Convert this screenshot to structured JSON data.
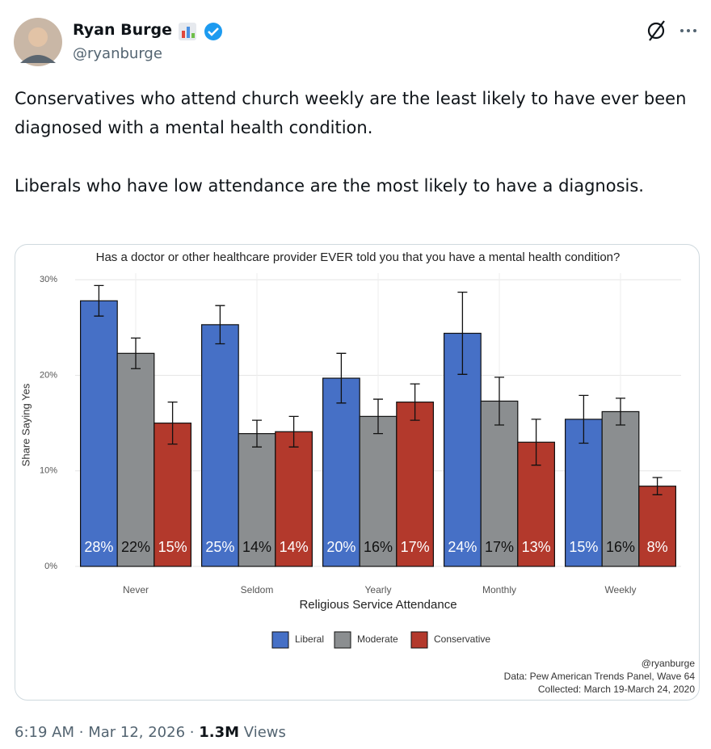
{
  "author": {
    "name": "Ryan Burge",
    "handle": "@ryanburge"
  },
  "text": [
    "Conservatives who attend church weekly are the least likely to have ever been diagnosed with a mental health condition.",
    "Liberals who have low attendance are the most likely to have a diagnosis."
  ],
  "meta": {
    "time": "6:19 AM",
    "separator": "·",
    "date": "Mar 12, 2026",
    "views": "1.3M",
    "views_label": "Views"
  },
  "chart_data": {
    "type": "bar",
    "title": "Has a doctor or other healthcare provider EVER told you that you have a mental health condition?",
    "x_label": "Religious Service Attendance",
    "y_label": "Share Saying Yes",
    "categories": [
      "Never",
      "Seldom",
      "Yearly",
      "Monthly",
      "Weekly"
    ],
    "series": [
      {
        "name": "Liberal",
        "color": "#4670c6",
        "values": [
          27.8,
          25.3,
          19.7,
          24.4,
          15.4
        ],
        "errors": [
          1.6,
          2.0,
          2.6,
          4.3,
          2.5
        ],
        "value_labels": [
          "28%",
          "25%",
          "20%",
          "24%",
          "15%"
        ]
      },
      {
        "name": "Moderate",
        "color": "#8b8e90",
        "values": [
          22.3,
          13.9,
          15.7,
          17.3,
          16.2
        ],
        "errors": [
          1.6,
          1.4,
          1.8,
          2.5,
          1.4
        ],
        "value_labels": [
          "22%",
          "14%",
          "16%",
          "17%",
          "16%"
        ]
      },
      {
        "name": "Conservative",
        "color": "#b3392c",
        "values": [
          15.0,
          14.1,
          17.2,
          13.0,
          8.4
        ],
        "errors": [
          2.2,
          1.6,
          1.9,
          2.4,
          0.9
        ],
        "value_labels": [
          "15%",
          "14%",
          "17%",
          "13%",
          "8%"
        ]
      }
    ],
    "ylim": [
      0,
      30.7
    ],
    "yticks": [
      {
        "value": 0,
        "label": "0%"
      },
      {
        "value": 10,
        "label": "10%"
      },
      {
        "value": 20,
        "label": "20%"
      },
      {
        "value": 30,
        "label": "30%"
      }
    ],
    "grid": true,
    "legend": "bottom",
    "caption": [
      "@ryanburge",
      "Data: Pew American Trends Panel, Wave 64",
      "Collected: March 19-March 24, 2020"
    ]
  }
}
